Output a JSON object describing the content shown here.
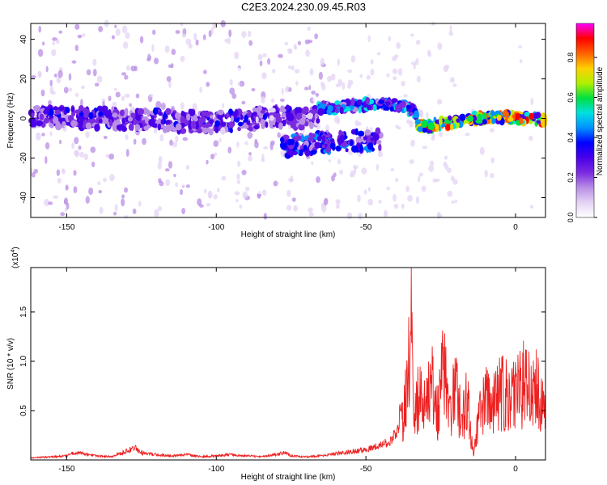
{
  "title": "C2E3.2024.230.09.45.R03",
  "colors": {
    "snr_line": "#ee2020",
    "colormap": [
      "#ffffff",
      "#e4d4f4",
      "#b98ee6",
      "#7a2be0",
      "#4a00e8",
      "#0000ff",
      "#0090ff",
      "#00e0e0",
      "#00e040",
      "#b0f000",
      "#ffd000",
      "#ff6000",
      "#ff0000",
      "#ff00ff"
    ]
  },
  "chart_data": [
    {
      "type": "heatmap",
      "xlabel": "Height of straight line (km)",
      "ylabel": "Frequency (Hz)",
      "xlim": [
        -162,
        10
      ],
      "ylim": [
        -50,
        48
      ],
      "x_ticks": [
        -150,
        -100,
        -50,
        0
      ],
      "y_ticks": [
        -40,
        -20,
        0,
        20,
        40
      ],
      "x_tick_labels": [
        "-150",
        "-100",
        "-50",
        "0"
      ],
      "y_tick_labels": [
        "-40",
        "-20",
        "0",
        "20",
        "40"
      ],
      "colorbar": {
        "label": "Normalized spectral amplitude",
        "range": [
          0,
          0.97
        ],
        "ticks": [
          0.0,
          0.2,
          0.4,
          0.6,
          0.8
        ],
        "tick_labels": [
          "0.0",
          "0.2",
          "0.4",
          "0.6",
          "0.8"
        ]
      },
      "ridges": [
        {
          "x": [
            -162,
            -140,
            -120,
            -100,
            -80,
            -66
          ],
          "freq": [
            1,
            0,
            -1,
            -2,
            1,
            0
          ],
          "peak_amplitude": 0.35
        },
        {
          "x": [
            -78,
            -70,
            -60,
            -50,
            -45
          ],
          "freq": [
            -14,
            -13,
            -12,
            -11,
            -11
          ],
          "peak_amplitude": 0.45
        },
        {
          "x": [
            -66,
            -55,
            -45,
            -38,
            -33
          ],
          "freq": [
            5,
            6,
            8,
            6,
            3
          ],
          "peak_amplitude": 0.55
        },
        {
          "x": [
            -33,
            -25,
            -15,
            -5,
            5,
            10
          ],
          "freq": [
            -4,
            -3,
            0,
            1,
            0,
            -1
          ],
          "peak_amplitude": 0.9
        }
      ]
    },
    {
      "type": "line",
      "xlabel": "Height of straight line (km)",
      "ylabel": "SNR (10 * v/v)",
      "y_multiplier": "(x10",
      "y_multiplier_exp": "4",
      "y_multiplier_close": ")",
      "xlim": [
        -162,
        10
      ],
      "ylim": [
        0,
        1.95
      ],
      "x_ticks": [
        -150,
        -100,
        -50,
        0
      ],
      "y_ticks": [
        0.5,
        1.0,
        1.5
      ],
      "x_tick_labels": [
        "-150",
        "-100",
        "-50",
        "0"
      ],
      "y_tick_labels": [
        "0.5",
        "1.0",
        "1.5"
      ],
      "series": [
        {
          "x": [
            -162,
            -155,
            -150,
            -147,
            -140,
            -135,
            -127,
            -126,
            -124,
            -120,
            -115,
            -110,
            -105,
            -100,
            -95,
            -90,
            -85,
            -77,
            -75,
            -70,
            -65,
            -60,
            -55,
            -50,
            -48,
            -45,
            -42,
            -40,
            -38,
            -37,
            -36,
            -35,
            -34,
            -33,
            -32,
            -31,
            -30,
            -28,
            -26,
            -24,
            -22,
            -20,
            -18,
            -16,
            -15,
            -14,
            -12,
            -10,
            -8,
            -6,
            -4,
            -2,
            0,
            2,
            3,
            5,
            7,
            9,
            10
          ],
          "y": [
            0.02,
            0.03,
            0.04,
            0.07,
            0.04,
            0.03,
            0.12,
            0.09,
            0.06,
            0.05,
            0.04,
            0.05,
            0.03,
            0.04,
            0.05,
            0.04,
            0.03,
            0.07,
            0.04,
            0.03,
            0.04,
            0.06,
            0.08,
            0.1,
            0.12,
            0.14,
            0.18,
            0.25,
            0.5,
            0.8,
            1.0,
            1.9,
            0.8,
            0.7,
            1.1,
            0.5,
            0.8,
            1.0,
            0.6,
            1.3,
            0.6,
            1.0,
            0.5,
            0.9,
            0.3,
            0.1,
            0.6,
            0.8,
            0.75,
            0.85,
            0.9,
            0.8,
            0.85,
            0.95,
            1.05,
            0.9,
            1.0,
            0.75,
            0.55
          ]
        }
      ]
    }
  ]
}
